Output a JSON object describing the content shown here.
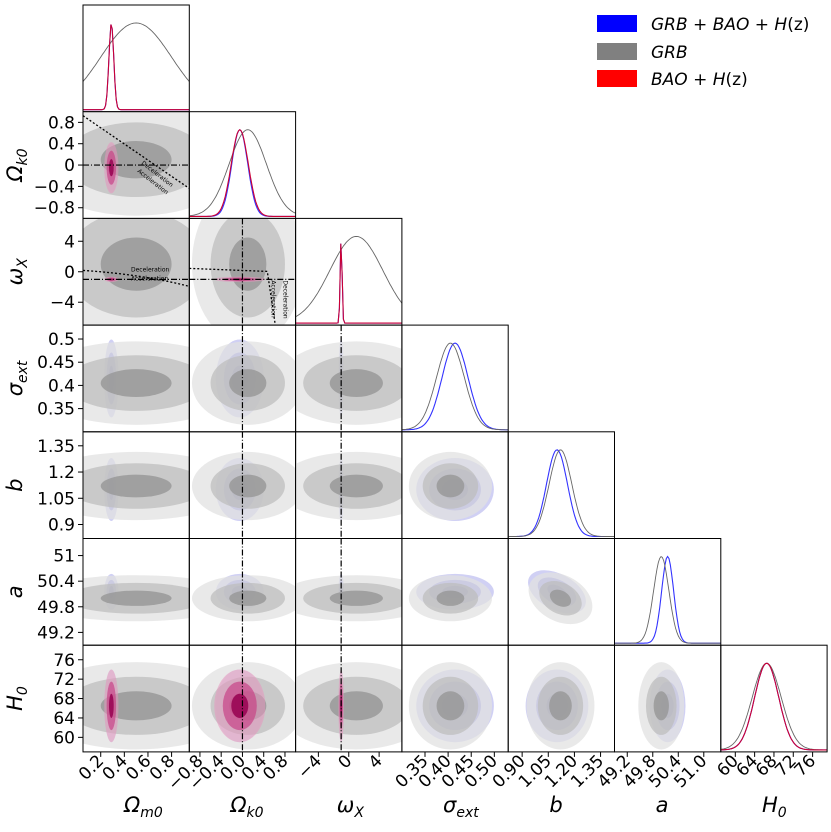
{
  "chart_data": {
    "type": "corner",
    "title": "",
    "parameters": [
      {
        "key": "Om",
        "label": "Ω",
        "sub": "m0",
        "ticks": [
          "0.2",
          "0.4",
          "0.6",
          "0.8"
        ],
        "range": [
          0.05,
          0.95
        ]
      },
      {
        "key": "Ok",
        "label": "Ω",
        "sub": "k0",
        "ticks": [
          "−0.8",
          "−0.4",
          "0.0",
          "0.4",
          "0.8"
        ],
        "ytick_labels": [
          "0.8",
          "0.4",
          "0",
          "−0.4",
          "−0.8"
        ],
        "range": [
          -1.0,
          1.0
        ]
      },
      {
        "key": "wx",
        "label": "ω",
        "sub": "X",
        "ticks": [
          "−4",
          "0",
          "4"
        ],
        "ytick_labels": [
          "4",
          "0",
          "−4"
        ],
        "range": [
          -7.0,
          7.0
        ]
      },
      {
        "key": "sig",
        "label": "σ",
        "sub": "ext",
        "ticks": [
          "0.35",
          "0.40",
          "0.45",
          "0.50"
        ],
        "ytick_labels": [
          "0.5",
          "0.45",
          "0.4",
          "0.35"
        ],
        "range": [
          0.3,
          0.53
        ]
      },
      {
        "key": "b",
        "label": "b",
        "sub": "",
        "ticks": [
          "0.90",
          "1.05",
          "1.20",
          "1.35"
        ],
        "ytick_labels": [
          "1.35",
          "1.2",
          "1.05",
          "0.9"
        ],
        "range": [
          0.82,
          1.43
        ]
      },
      {
        "key": "a",
        "label": "a",
        "sub": "",
        "ticks": [
          "49.2",
          "49.8",
          "50.4",
          "51.0"
        ],
        "ytick_labels": [
          "51",
          "50.4",
          "49.8",
          "49.2"
        ],
        "range": [
          48.9,
          51.4
        ]
      },
      {
        "key": "H0",
        "label": "H",
        "sub": "0",
        "ticks": [
          "60",
          "64",
          "68",
          "72",
          "76"
        ],
        "ytick_labels": [
          "76",
          "72",
          "68",
          "64",
          "60"
        ],
        "range": [
          57,
          79
        ]
      }
    ],
    "series": [
      {
        "name": "GRB + BAO + H(z)",
        "legend_main": "GRB + BAO + H",
        "legend_paren": "(z)",
        "color": "#0000ff",
        "means": {
          "Om": 0.29,
          "Ok": -0.05,
          "wx": -1.0,
          "sig": 0.415,
          "b": 1.1,
          "a": 50.15,
          "H0": 66.5
        },
        "sigmas": {
          "Om": 0.02,
          "Ok": 0.15,
          "wx": 0.12,
          "sig": 0.028,
          "b": 0.06,
          "a": 0.14,
          "H0": 2.5
        }
      },
      {
        "name": "GRB",
        "legend_main": "GRB",
        "legend_paren": "",
        "color": "#808080",
        "means": {
          "Om": 0.5,
          "Ok": 0.1,
          "wx": 1.0,
          "sig": 0.405,
          "b": 1.12,
          "a": 50.0,
          "H0": 66.5
        },
        "sigmas": {
          "Om": 0.3,
          "Ok": 0.35,
          "wx": 3.5,
          "sig": 0.03,
          "b": 0.065,
          "a": 0.18,
          "H0": 3.0
        }
      },
      {
        "name": "BAO + H(z)",
        "legend_main": "BAO + H",
        "legend_paren": "(z)",
        "color": "#ff0000",
        "means": {
          "Om": 0.29,
          "Ok": -0.05,
          "wx": -1.0,
          "H0": 66.5
        },
        "sigmas": {
          "Om": 0.02,
          "Ok": 0.16,
          "wx": 0.12,
          "H0": 2.5
        }
      }
    ],
    "reference_lines": {
      "Ok": 0.0,
      "wx": -1.0
    },
    "annotations": {
      "decel": "Deceleration",
      "accel": "Acceleration"
    },
    "legend_position": "top-right"
  }
}
